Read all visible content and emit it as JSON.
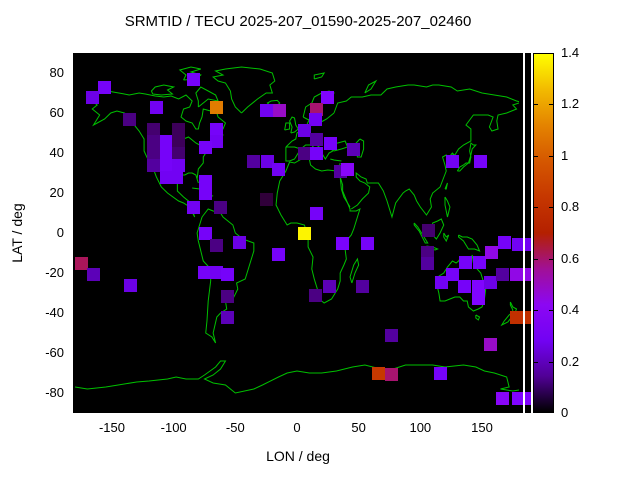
{
  "title": "SRMTID / TECU 2025-207_01590-2025-207_02460",
  "axes": {
    "x_label": "LON / deg",
    "y_label": "LAT / deg",
    "x_range": [
      -180,
      180
    ],
    "y_range": [
      -90,
      90
    ],
    "x_ticks": [
      {
        "value": -150,
        "label": "-150"
      },
      {
        "value": -100,
        "label": "-100"
      },
      {
        "value": -50,
        "label": "-50"
      },
      {
        "value": 0,
        "label": "0"
      },
      {
        "value": 50,
        "label": "50"
      },
      {
        "value": 100,
        "label": "100"
      },
      {
        "value": 150,
        "label": "150"
      }
    ],
    "y_ticks": [
      {
        "value": 80,
        "label": "80"
      },
      {
        "value": 60,
        "label": "60"
      },
      {
        "value": 40,
        "label": "40"
      },
      {
        "value": 20,
        "label": "20"
      },
      {
        "value": 0,
        "label": "0"
      },
      {
        "value": -20,
        "label": "-20"
      },
      {
        "value": -40,
        "label": "-40"
      },
      {
        "value": -60,
        "label": "-60"
      },
      {
        "value": -80,
        "label": "-80"
      }
    ]
  },
  "map_style": {
    "background": "#000000",
    "coastline_color": "#00c000",
    "divider_color": "#ffffff"
  },
  "colorbar": {
    "min": 0,
    "max": 1.4,
    "labels": [
      {
        "value": 1.4,
        "label": "1.4"
      },
      {
        "value": 1.2,
        "label": "1.2"
      },
      {
        "value": 1.0,
        "label": "1"
      },
      {
        "value": 0.8,
        "label": "0.8"
      },
      {
        "value": 0.6,
        "label": "0.6"
      },
      {
        "value": 0.4,
        "label": "0.4"
      },
      {
        "value": 0.2,
        "label": "0.2"
      },
      {
        "value": 0,
        "label": "0"
      }
    ],
    "tick_values": [
      0.2,
      0.4,
      0.6,
      0.8,
      1.0,
      1.2
    ],
    "gradient_stops": [
      {
        "at": 0.0,
        "color": "#000000"
      },
      {
        "at": 0.1,
        "color": "#510096"
      },
      {
        "at": 0.2,
        "color": "#7202F3"
      },
      {
        "at": 0.3,
        "color": "#8C07F3"
      },
      {
        "at": 0.4,
        "color": "#A11096"
      },
      {
        "at": 0.5,
        "color": "#B42000"
      },
      {
        "at": 0.6,
        "color": "#C63700"
      },
      {
        "at": 0.7,
        "color": "#D55700"
      },
      {
        "at": 0.8,
        "color": "#E48300"
      },
      {
        "at": 0.9,
        "color": "#F2BA00"
      },
      {
        "at": 1.0,
        "color": "#FFFF00"
      }
    ]
  },
  "chart_data": {
    "type": "heatmap",
    "title": "SRMTID / TECU 2025-207_01590-2025-207_02460",
    "xlabel": "LON / deg",
    "ylabel": "LAT / deg",
    "value_label": "TECU",
    "value_range": [
      0,
      1.4
    ],
    "xlim": [
      -180,
      180
    ],
    "ylim": [
      -90,
      90
    ],
    "points": [
      {
        "lon": -156,
        "lat": 73,
        "value": 0.3,
        "color": "#7603F9"
      },
      {
        "lon": -166,
        "lat": 68,
        "value": 0.25,
        "color": "#6C01E6"
      },
      {
        "lon": -84,
        "lat": 77,
        "value": 0.3,
        "color": "#7603F9"
      },
      {
        "lon": -114,
        "lat": 63,
        "value": 0.28,
        "color": "#7202F3"
      },
      {
        "lon": -65,
        "lat": 63,
        "value": 1.1,
        "color": "#E27C00"
      },
      {
        "lon": -136,
        "lat": 57,
        "value": 0.12,
        "color": "#4B0083"
      },
      {
        "lon": -116,
        "lat": 52,
        "value": 0.1,
        "color": "#44006F"
      },
      {
        "lon": -96,
        "lat": 52,
        "value": 0.08,
        "color": "#3D005A"
      },
      {
        "lon": -65,
        "lat": 52,
        "value": 0.3,
        "color": "#7603F9"
      },
      {
        "lon": -116,
        "lat": 46,
        "value": 0.12,
        "color": "#4B0083"
      },
      {
        "lon": -106,
        "lat": 46,
        "value": 0.3,
        "color": "#7603F9"
      },
      {
        "lon": -96,
        "lat": 46,
        "value": 0.08,
        "color": "#3D005A"
      },
      {
        "lon": -65,
        "lat": 46,
        "value": 0.28,
        "color": "#7202F3"
      },
      {
        "lon": -74,
        "lat": 43,
        "value": 0.3,
        "color": "#7603F9"
      },
      {
        "lon": -116,
        "lat": 40,
        "value": 0.12,
        "color": "#4B0083"
      },
      {
        "lon": -106,
        "lat": 40,
        "value": 0.3,
        "color": "#7603F9"
      },
      {
        "lon": -96,
        "lat": 40,
        "value": 0.1,
        "color": "#44006F"
      },
      {
        "lon": -116,
        "lat": 34,
        "value": 0.15,
        "color": "#53009F"
      },
      {
        "lon": -106,
        "lat": 34,
        "value": 0.3,
        "color": "#7603F9"
      },
      {
        "lon": -96,
        "lat": 34,
        "value": 0.28,
        "color": "#7202F3"
      },
      {
        "lon": -106,
        "lat": 28,
        "value": 0.28,
        "color": "#7202F3"
      },
      {
        "lon": -98,
        "lat": 28,
        "value": 0.28,
        "color": "#7202F3"
      },
      {
        "lon": -74,
        "lat": 26,
        "value": 0.3,
        "color": "#7603F9"
      },
      {
        "lon": -74,
        "lat": 20,
        "value": 0.3,
        "color": "#7603F9"
      },
      {
        "lon": -84,
        "lat": 13,
        "value": 0.28,
        "color": "#7202F3"
      },
      {
        "lon": -62,
        "lat": 13,
        "value": 0.12,
        "color": "#4B0083"
      },
      {
        "lon": -74,
        "lat": 0,
        "value": 0.3,
        "color": "#7603F9"
      },
      {
        "lon": -65,
        "lat": -6,
        "value": 0.12,
        "color": "#4B0083"
      },
      {
        "lon": -25,
        "lat": 61.5,
        "value": 0.28,
        "color": "#7202F3"
      },
      {
        "lon": -14,
        "lat": 61.5,
        "value": 0.5,
        "color": "#980CC7"
      },
      {
        "lon": 25,
        "lat": 68,
        "value": 0.35,
        "color": "#8004FF"
      },
      {
        "lon": 16,
        "lat": 62,
        "value": 0.6,
        "color": "#A7146F"
      },
      {
        "lon": 15,
        "lat": 57,
        "value": 0.28,
        "color": "#7202F3"
      },
      {
        "lon": 6,
        "lat": 51.5,
        "value": 0.25,
        "color": "#6C01E6"
      },
      {
        "lon": 16,
        "lat": 47,
        "value": 0.15,
        "color": "#53009F"
      },
      {
        "lon": 27,
        "lat": 45,
        "value": 0.3,
        "color": "#7603F9"
      },
      {
        "lon": 46,
        "lat": 42,
        "value": 0.18,
        "color": "#5C01B8"
      },
      {
        "lon": 6,
        "lat": 40,
        "value": 0.12,
        "color": "#4B0083"
      },
      {
        "lon": 16,
        "lat": 40,
        "value": 0.3,
        "color": "#7603F9"
      },
      {
        "lon": -35,
        "lat": 36,
        "value": 0.15,
        "color": "#53009F"
      },
      {
        "lon": -24,
        "lat": 36,
        "value": 0.25,
        "color": "#6C01E6"
      },
      {
        "lon": -15,
        "lat": 32,
        "value": 0.28,
        "color": "#7202F3"
      },
      {
        "lon": 35,
        "lat": 31,
        "value": 0.15,
        "color": "#53009F"
      },
      {
        "lon": 41,
        "lat": 32,
        "value": 0.4,
        "color": "#8806F9"
      },
      {
        "lon": -25,
        "lat": 17,
        "value": 0.05,
        "color": "#300039"
      },
      {
        "lon": 16,
        "lat": 10,
        "value": 0.3,
        "color": "#7603F9"
      },
      {
        "lon": 6,
        "lat": 0,
        "value": 1.38,
        "color": "#FDF400"
      },
      {
        "lon": 126,
        "lat": 36,
        "value": 0.28,
        "color": "#7202F3"
      },
      {
        "lon": 149,
        "lat": 36,
        "value": 0.3,
        "color": "#7603F9"
      },
      {
        "lon": 107,
        "lat": 1.5,
        "value": 0.1,
        "color": "#44006F"
      },
      {
        "lon": 37,
        "lat": -5,
        "value": 0.32,
        "color": "#7A03FD"
      },
      {
        "lon": 57,
        "lat": -5,
        "value": 0.3,
        "color": "#7603F9"
      },
      {
        "lon": -15,
        "lat": -10.5,
        "value": 0.3,
        "color": "#7603F9"
      },
      {
        "lon": 26,
        "lat": -26.5,
        "value": 0.18,
        "color": "#5C01B8"
      },
      {
        "lon": 15,
        "lat": -31,
        "value": 0.12,
        "color": "#4B0083"
      },
      {
        "lon": 53,
        "lat": -26.5,
        "value": 0.15,
        "color": "#53009F"
      },
      {
        "lon": 77,
        "lat": -51,
        "value": 0.15,
        "color": "#53009F"
      },
      {
        "lon": -47,
        "lat": -4.5,
        "value": 0.25,
        "color": "#6C01E6"
      },
      {
        "lon": -175,
        "lat": -15,
        "value": 0.62,
        "color": "#AA165A"
      },
      {
        "lon": -165,
        "lat": -20.5,
        "value": 0.18,
        "color": "#5C01B8"
      },
      {
        "lon": -135,
        "lat": -26,
        "value": 0.25,
        "color": "#6C01E6"
      },
      {
        "lon": -75,
        "lat": -19.5,
        "value": 0.3,
        "color": "#7603F9"
      },
      {
        "lon": -65,
        "lat": -19.5,
        "value": 0.28,
        "color": "#7202F3"
      },
      {
        "lon": -56,
        "lat": -20.5,
        "value": 0.3,
        "color": "#7603F9"
      },
      {
        "lon": -56,
        "lat": -31.5,
        "value": 0.12,
        "color": "#4B0083"
      },
      {
        "lon": -56,
        "lat": -42,
        "value": 0.18,
        "color": "#5C01B8"
      },
      {
        "lon": 106,
        "lat": -9.5,
        "value": 0.12,
        "color": "#4B0083"
      },
      {
        "lon": 106,
        "lat": -15,
        "value": 0.15,
        "color": "#53009F"
      },
      {
        "lon": 137,
        "lat": -14.5,
        "value": 0.3,
        "color": "#7603F9"
      },
      {
        "lon": 148,
        "lat": -14.5,
        "value": 0.3,
        "color": "#7603F9"
      },
      {
        "lon": 158,
        "lat": -9.5,
        "value": 0.45,
        "color": "#9108E6"
      },
      {
        "lon": 168,
        "lat": -4.5,
        "value": 0.3,
        "color": "#7603F9"
      },
      {
        "lon": 180,
        "lat": -5.5,
        "value": 0.28,
        "color": "#7202F3"
      },
      {
        "lon": 117,
        "lat": -24.5,
        "value": 0.28,
        "color": "#7202F3"
      },
      {
        "lon": 126,
        "lat": -20.5,
        "value": 0.3,
        "color": "#7603F9"
      },
      {
        "lon": 136,
        "lat": -26.5,
        "value": 0.3,
        "color": "#7603F9"
      },
      {
        "lon": 147,
        "lat": -26.5,
        "value": 0.35,
        "color": "#8004FF"
      },
      {
        "lon": 147,
        "lat": -32.5,
        "value": 0.35,
        "color": "#8004FF"
      },
      {
        "lon": 157,
        "lat": -24.5,
        "value": 0.25,
        "color": "#6C01E6"
      },
      {
        "lon": 167,
        "lat": -20.5,
        "value": 0.15,
        "color": "#53009F"
      },
      {
        "lon": 178,
        "lat": -20.5,
        "value": 0.45,
        "color": "#9108E6"
      },
      {
        "lon": 178,
        "lat": -42,
        "value": 0.8,
        "color": "#C13000"
      },
      {
        "lon": 157,
        "lat": -55.5,
        "value": 0.5,
        "color": "#980CC7"
      },
      {
        "lon": 66,
        "lat": -70,
        "value": 0.85,
        "color": "#C73900"
      },
      {
        "lon": 77,
        "lat": -70.5,
        "value": 0.6,
        "color": "#A7146F"
      },
      {
        "lon": 116,
        "lat": -70,
        "value": 0.3,
        "color": "#7603F9"
      },
      {
        "lon": 167,
        "lat": -82.5,
        "value": 0.4,
        "color": "#8806F9"
      },
      {
        "lon": 180,
        "lat": -82.5,
        "value": 0.35,
        "color": "#8004FF"
      }
    ],
    "wrap_strip": [
      {
        "lat": -5.5,
        "color": "#7202F3"
      },
      {
        "lat": -20.5,
        "color": "#9108E6"
      },
      {
        "lat": -42,
        "color": "#C13000"
      },
      {
        "lat": -82.5,
        "color": "#8004FF"
      }
    ]
  }
}
